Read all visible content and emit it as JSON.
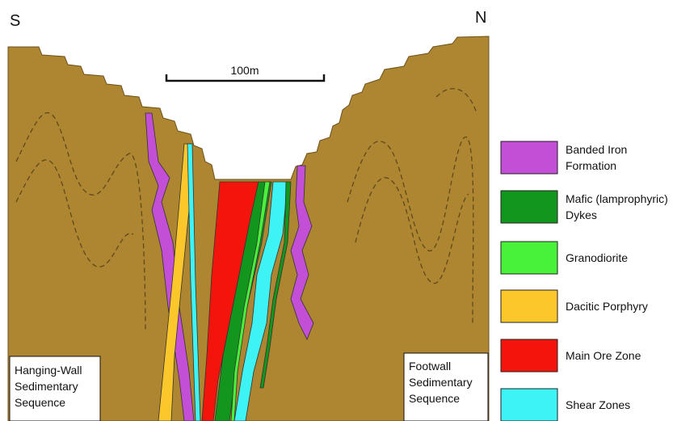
{
  "header": {
    "south": "S",
    "north": "N"
  },
  "scale_bar": {
    "label": "100m"
  },
  "section_labels": [
    {
      "lines": [
        "Hanging-Wall",
        "Sedimentary",
        "Sequence"
      ]
    },
    {
      "lines": [
        "Footwall",
        "Sedimentary",
        "Sequence"
      ]
    }
  ],
  "legend": [
    {
      "lines": [
        "Banded Iron",
        "Formation"
      ],
      "color": "#c24fd6"
    },
    {
      "lines": [
        "Mafic (lamprophyric)",
        "Dykes"
      ],
      "color": "#13961e"
    },
    {
      "lines": [
        "Granodiorite"
      ],
      "color": "#48f23a"
    },
    {
      "lines": [
        "Dacitic Porphyry"
      ],
      "color": "#fcc72b"
    },
    {
      "lines": [
        "Main Ore Zone"
      ],
      "color": "#f3150c"
    },
    {
      "lines": [
        "Shear Zones"
      ],
      "color": "#3df3f4"
    }
  ]
}
